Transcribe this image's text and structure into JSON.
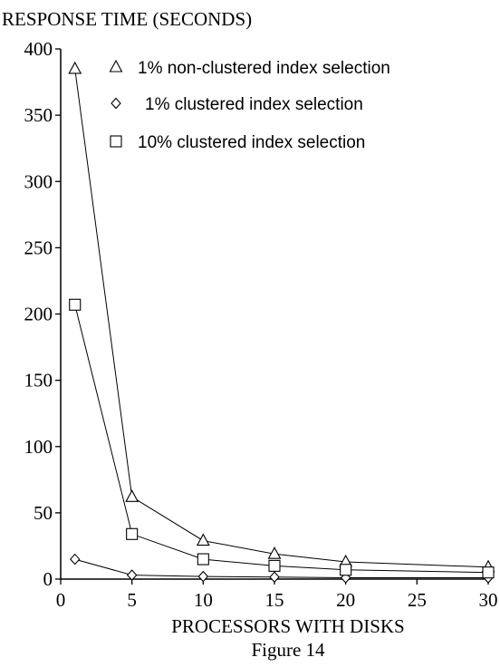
{
  "chart_data": {
    "type": "line",
    "ylabel": "RESPONSE TIME (SECONDS)",
    "xlabel": "PROCESSORS WITH DISKS",
    "caption": "Figure 14",
    "xlim": [
      0,
      30
    ],
    "ylim": [
      0,
      400
    ],
    "xticks": [
      0,
      5,
      10,
      15,
      20,
      25,
      30
    ],
    "yticks": [
      0,
      50,
      100,
      150,
      200,
      250,
      300,
      350,
      400
    ],
    "grid": false,
    "legend_position": "top-right",
    "series": [
      {
        "name": "1% non-clustered index selection",
        "marker": "triangle",
        "x": [
          1,
          5,
          10,
          15,
          20,
          30
        ],
        "y": [
          385,
          62,
          29,
          19,
          13,
          9
        ]
      },
      {
        "name": "1% clustered index selection",
        "marker": "diamond",
        "x": [
          1,
          5,
          10,
          15,
          20,
          30
        ],
        "y": [
          15,
          3,
          2,
          1.5,
          1,
          1
        ]
      },
      {
        "name": "10% clustered index selection",
        "marker": "square",
        "x": [
          1,
          5,
          10,
          15,
          20,
          30
        ],
        "y": [
          207,
          34,
          15,
          10,
          7,
          5
        ]
      }
    ]
  }
}
